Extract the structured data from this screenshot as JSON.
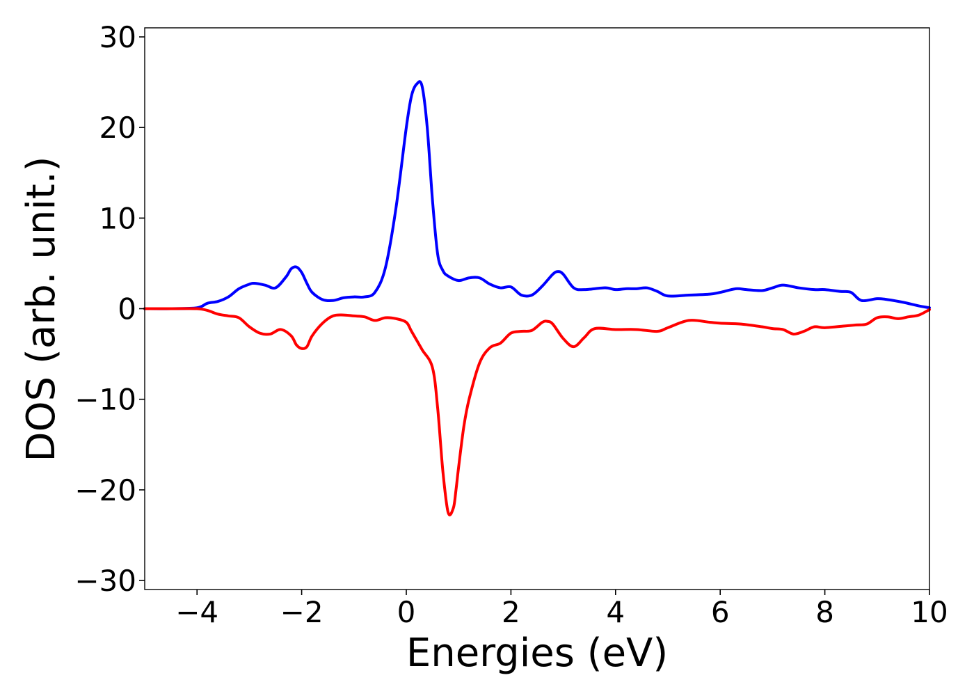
{
  "chart_data": {
    "type": "line",
    "title": "",
    "xlabel": "Energies (eV)",
    "ylabel": "DOS (arb. unit.)",
    "xlim": [
      -5,
      10
    ],
    "ylim": [
      -31,
      31
    ],
    "xticks": [
      -4,
      -2,
      0,
      2,
      4,
      6,
      8,
      10
    ],
    "xtick_labels": [
      "−4",
      "−2",
      "0",
      "2",
      "4",
      "6",
      "8",
      "10"
    ],
    "yticks": [
      -30,
      -20,
      -10,
      0,
      10,
      20,
      30
    ],
    "ytick_labels": [
      "−30",
      "−20",
      "−10",
      "0",
      "10",
      "20",
      "30"
    ],
    "grid": false,
    "series": [
      {
        "color": "#0000ff",
        "x": [
          -5,
          -4.5,
          -4.0,
          -3.8,
          -3.6,
          -3.4,
          -3.2,
          -3.0,
          -2.9,
          -2.7,
          -2.5,
          -2.3,
          -2.2,
          -2.1,
          -2.0,
          -1.9,
          -1.8,
          -1.6,
          -1.4,
          -1.2,
          -1.0,
          -0.8,
          -0.6,
          -0.4,
          -0.2,
          0.0,
          0.1,
          0.2,
          0.3,
          0.4,
          0.5,
          0.6,
          0.7,
          0.8,
          1.0,
          1.2,
          1.4,
          1.6,
          1.8,
          2.0,
          2.2,
          2.4,
          2.6,
          2.8,
          2.9,
          3.0,
          3.2,
          3.4,
          3.8,
          4.0,
          4.2,
          4.4,
          4.6,
          4.8,
          5.0,
          5.4,
          5.8,
          6.0,
          6.3,
          6.5,
          6.8,
          7.0,
          7.2,
          7.5,
          7.8,
          8.0,
          8.3,
          8.5,
          8.7,
          9.0,
          9.2,
          9.5,
          9.8,
          10.0
        ],
        "y": [
          0,
          0,
          0.1,
          0.6,
          0.8,
          1.3,
          2.2,
          2.7,
          2.8,
          2.6,
          2.3,
          3.5,
          4.4,
          4.6,
          4.0,
          2.8,
          1.8,
          1.0,
          0.9,
          1.2,
          1.3,
          1.3,
          1.8,
          4.5,
          11.0,
          20.0,
          23.5,
          24.8,
          24.6,
          20.0,
          12.0,
          6.0,
          4.2,
          3.6,
          3.1,
          3.4,
          3.4,
          2.7,
          2.3,
          2.4,
          1.5,
          1.5,
          2.5,
          3.8,
          4.1,
          3.8,
          2.3,
          2.1,
          2.3,
          2.1,
          2.2,
          2.2,
          2.3,
          1.9,
          1.4,
          1.5,
          1.6,
          1.8,
          2.2,
          2.1,
          2.0,
          2.3,
          2.6,
          2.3,
          2.1,
          2.1,
          1.9,
          1.8,
          0.9,
          1.1,
          1.0,
          0.7,
          0.3,
          0.1
        ]
      },
      {
        "color": "#ff0000",
        "x": [
          -5,
          -4.5,
          -4.0,
          -3.8,
          -3.6,
          -3.4,
          -3.2,
          -3.0,
          -2.8,
          -2.6,
          -2.4,
          -2.2,
          -2.1,
          -2.0,
          -1.9,
          -1.8,
          -1.6,
          -1.4,
          -1.2,
          -1.0,
          -0.8,
          -0.6,
          -0.4,
          -0.2,
          0.0,
          0.1,
          0.3,
          0.5,
          0.6,
          0.7,
          0.8,
          0.9,
          0.95,
          1.0,
          1.1,
          1.2,
          1.4,
          1.6,
          1.8,
          2.0,
          2.2,
          2.4,
          2.6,
          2.7,
          2.8,
          3.0,
          3.2,
          3.4,
          3.6,
          4.0,
          4.4,
          4.8,
          5.0,
          5.4,
          5.8,
          6.0,
          6.4,
          6.8,
          7.0,
          7.2,
          7.4,
          7.6,
          7.8,
          8.0,
          8.4,
          8.6,
          8.8,
          9.0,
          9.2,
          9.4,
          9.6,
          9.8,
          10.0
        ],
        "y": [
          0,
          0,
          0,
          -0.2,
          -0.6,
          -0.8,
          -1.0,
          -2.0,
          -2.7,
          -2.8,
          -2.3,
          -3.0,
          -4.0,
          -4.4,
          -4.2,
          -3.0,
          -1.6,
          -0.8,
          -0.7,
          -0.8,
          -0.9,
          -1.3,
          -1.0,
          -1.1,
          -1.5,
          -2.5,
          -4.5,
          -6.5,
          -11.0,
          -18.0,
          -22.5,
          -22.0,
          -20.0,
          -17.5,
          -13.0,
          -10.0,
          -6.0,
          -4.3,
          -3.8,
          -2.7,
          -2.5,
          -2.4,
          -1.5,
          -1.4,
          -1.7,
          -3.3,
          -4.2,
          -3.2,
          -2.2,
          -2.3,
          -2.3,
          -2.5,
          -2.1,
          -1.3,
          -1.5,
          -1.6,
          -1.7,
          -2.0,
          -2.2,
          -2.3,
          -2.8,
          -2.5,
          -2.0,
          -2.1,
          -1.9,
          -1.8,
          -1.7,
          -1.0,
          -0.9,
          -1.1,
          -0.9,
          -0.7,
          -0.1
        ]
      }
    ]
  }
}
